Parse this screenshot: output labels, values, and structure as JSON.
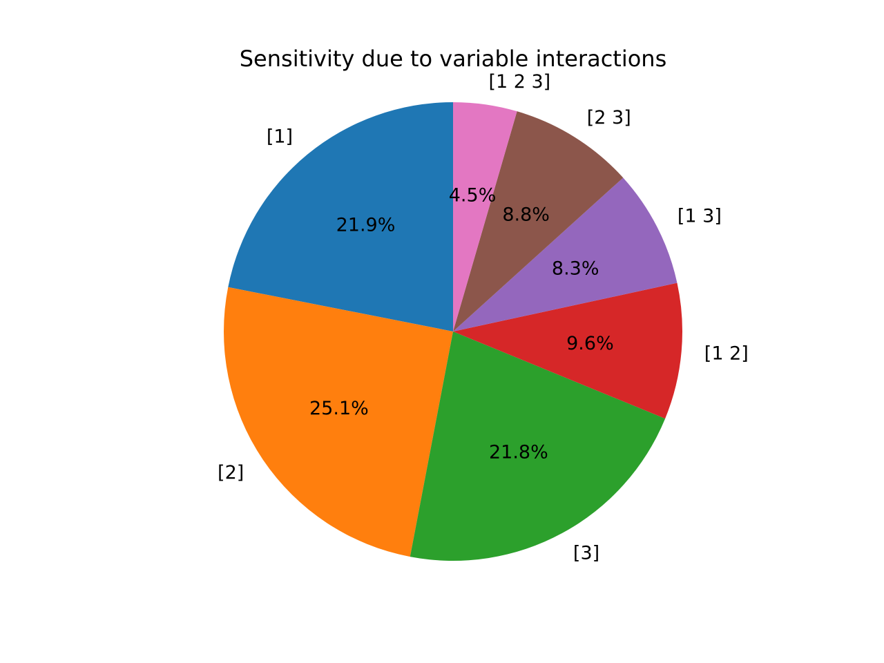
{
  "chart_data": {
    "type": "pie",
    "title": "Sensitivity due to variable interactions",
    "start_angle_deg": 90,
    "direction": "counterclockwise",
    "legend": "none",
    "slices": [
      {
        "label": "[1]",
        "value": 21.9,
        "pct_label": "21.9%",
        "color": "#1f77b4"
      },
      {
        "label": "[2]",
        "value": 25.1,
        "pct_label": "25.1%",
        "color": "#ff7f0e"
      },
      {
        "label": "[3]",
        "value": 21.8,
        "pct_label": "21.8%",
        "color": "#2ca02c"
      },
      {
        "label": "[1 2]",
        "value": 9.6,
        "pct_label": "9.6%",
        "color": "#d62728"
      },
      {
        "label": "[1 3]",
        "value": 8.3,
        "pct_label": "8.3%",
        "color": "#9467bd"
      },
      {
        "label": "[2 3]",
        "value": 8.8,
        "pct_label": "8.8%",
        "color": "#8c564b"
      },
      {
        "label": "[1 2 3]",
        "value": 4.5,
        "pct_label": "4.5%",
        "color": "#e377c2"
      }
    ]
  }
}
